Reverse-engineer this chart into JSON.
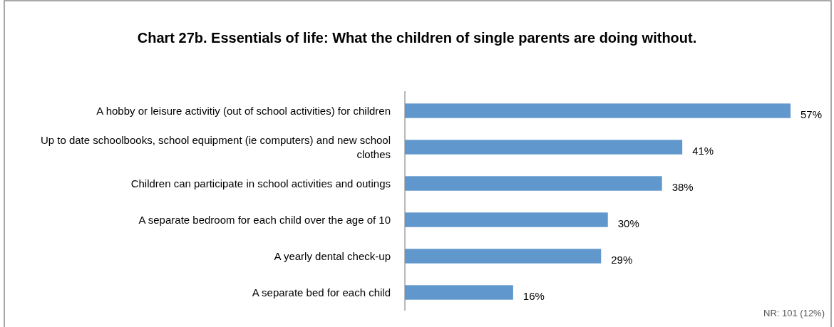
{
  "chart_data": {
    "type": "bar",
    "orientation": "horizontal",
    "title": "Chart 27b.  Essentials of life: What the children of single parents are doing without.",
    "categories": [
      "A hobby or leisure activitiy (out of school activities) for children",
      "Up to date schoolbooks, school equipment (ie computers) and new school clothes",
      "Children can participate in school activities and outings",
      "A separate bedroom for each child over the age of 10",
      "A yearly dental check-up",
      "A separate bed for each child"
    ],
    "values": [
      57,
      41,
      38,
      30,
      29,
      16
    ],
    "value_labels": [
      "57%",
      "41%",
      "38%",
      "30%",
      "29%",
      "16%"
    ],
    "color": "#6097cd",
    "annotations": [
      "NR: 101 (12%)"
    ]
  }
}
